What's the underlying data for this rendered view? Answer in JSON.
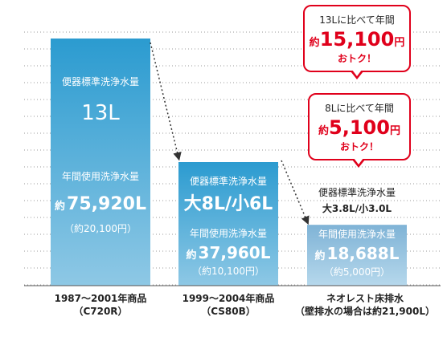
{
  "chart_data": {
    "type": "bar",
    "categories": [
      "1987～2001年商品 (C720R)",
      "1999～2004年商品 (CS80B)",
      "ネオレスト床排水 (壁排水の場合は約21,900L)"
    ],
    "values": [
      75920,
      37960,
      18688
    ],
    "unit": "L"
  },
  "bars": [
    {
      "std_title": "便器標準洗浄水量",
      "std_value": "13L",
      "annual_title": "年間使用洗浄水量",
      "annual_prefix": "約",
      "annual_value": "75,920L",
      "annual_cost": "（約20,100円）",
      "cat_line1": "1987～2001年商品",
      "cat_line2": "（C720R）",
      "color_top": "#2b9bd0",
      "color_bottom": "#8ec8e5"
    },
    {
      "std_title": "便器標準洗浄水量",
      "std_value": "大8L/小6L",
      "annual_title": "年間使用洗浄水量",
      "annual_prefix": "約",
      "annual_value": "37,960L",
      "annual_cost": "（約10,100円）",
      "cat_line1": "1999～2004年商品",
      "cat_line2": "（CS80B）",
      "color_top": "#2b9bd0",
      "color_bottom": "#8ec8e5"
    },
    {
      "std_title": "便器標準洗浄水量",
      "std_value": "大3.8L/小3.0L",
      "annual_title": "年間使用洗浄水量",
      "annual_prefix": "約",
      "annual_value": "18,688L",
      "annual_cost": "（約5,000円）",
      "cat_line1": "ネオレスト床排水",
      "cat_line2": "（壁排水の場合は約21,900L）",
      "color_top": "#7fb3d6",
      "color_bottom": "#b6d8ec"
    }
  ],
  "callouts": [
    {
      "head": "13Lに比べて年間",
      "prefix": "約",
      "value": "15,100",
      "suffix": "円",
      "foot": "おトク！"
    },
    {
      "head": "8Lに比べて年間",
      "prefix": "約",
      "value": "5,100",
      "suffix": "円",
      "foot": "おトク！"
    }
  ],
  "colors": {
    "accent_red": "#e0001b",
    "grid": "#9a9a9a",
    "arrow": "#333333"
  }
}
